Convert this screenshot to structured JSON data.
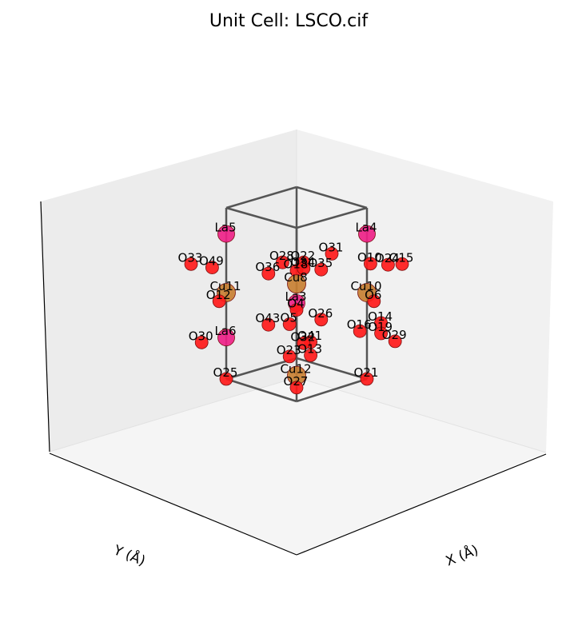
{
  "chart_data": {
    "type": "scatter3d",
    "title": "Unit Cell: LSCO.cif",
    "xlabel": "X (Å)",
    "ylabel": "Y (Å)",
    "colors": {
      "La": "#ee2288",
      "Sr": "#ee2288",
      "Cu": "#c88033",
      "O": "#ff1a1a",
      "cell": "#555555"
    },
    "atoms": [
      {
        "label": "La5",
        "el": "La",
        "x": 0.0,
        "y": 1.0,
        "z": 0.84
      },
      {
        "label": "La4",
        "el": "La",
        "x": 1.0,
        "y": 0.0,
        "z": 0.84
      },
      {
        "label": "O31",
        "el": "O",
        "x": 0.5,
        "y": 0.0,
        "z": 0.79
      },
      {
        "label": "O15",
        "el": "O",
        "x": 1.0,
        "y": -0.5,
        "z": 0.73
      },
      {
        "label": "O33",
        "el": "O",
        "x": -0.5,
        "y": 1.0,
        "z": 0.73
      },
      {
        "label": "O49",
        "el": "O",
        "x": -0.35,
        "y": 0.85,
        "z": 0.71
      },
      {
        "label": "O28",
        "el": "O",
        "x": 0.15,
        "y": 0.35,
        "z": 0.74
      },
      {
        "label": "O22",
        "el": "O",
        "x": 0.3,
        "y": 0.2,
        "z": 0.74
      },
      {
        "label": "O18",
        "el": "O",
        "x": 0.1,
        "y": 0.1,
        "z": 0.73
      },
      {
        "label": "O10",
        "el": "O",
        "x": 0.9,
        "y": -0.15,
        "z": 0.7
      },
      {
        "label": "O24",
        "el": "O",
        "x": 1.0,
        "y": -0.3,
        "z": 0.7
      },
      {
        "label": "O34",
        "el": "O",
        "x": 0.55,
        "y": 0.45,
        "z": 0.64
      },
      {
        "label": "O35",
        "el": "O",
        "x": 0.65,
        "y": 0.3,
        "z": 0.64
      },
      {
        "label": "O36",
        "el": "O",
        "x": 0.3,
        "y": 0.7,
        "z": 0.61
      },
      {
        "label": "Cu11",
        "el": "Cu",
        "x": 0.0,
        "y": 1.0,
        "z": 0.5
      },
      {
        "label": "Cu10",
        "el": "Cu",
        "x": 1.0,
        "y": 0.0,
        "z": 0.5
      },
      {
        "label": "Cu8",
        "el": "Cu",
        "x": 0.5,
        "y": 0.5,
        "z": 0.55
      },
      {
        "label": "O12",
        "el": "O",
        "x": -0.05,
        "y": 1.05,
        "z": 0.45
      },
      {
        "label": "O6",
        "el": "O",
        "x": 1.05,
        "y": -0.05,
        "z": 0.45
      },
      {
        "label": "La3",
        "el": "La",
        "x": 0.5,
        "y": 0.5,
        "z": 0.44
      },
      {
        "label": "O4",
        "el": "O",
        "x": 0.5,
        "y": 0.5,
        "z": 0.4
      },
      {
        "label": "O26",
        "el": "O",
        "x": 0.65,
        "y": 0.3,
        "z": 0.35
      },
      {
        "label": "O14",
        "el": "O",
        "x": 1.0,
        "y": -0.2,
        "z": 0.35
      },
      {
        "label": "O43",
        "el": "O",
        "x": 0.2,
        "y": 0.6,
        "z": 0.34
      },
      {
        "label": "O5",
        "el": "O",
        "x": 0.4,
        "y": 0.5,
        "z": 0.33
      },
      {
        "label": "O30",
        "el": "O",
        "x": -0.4,
        "y": 0.95,
        "z": 0.27
      },
      {
        "label": "La6",
        "el": "La",
        "x": 0.0,
        "y": 1.0,
        "z": 0.24
      },
      {
        "label": "O16",
        "el": "O",
        "x": 0.9,
        "y": 0.0,
        "z": 0.29
      },
      {
        "label": "O19",
        "el": "O",
        "x": 1.0,
        "y": -0.2,
        "z": 0.29
      },
      {
        "label": "O29",
        "el": "O",
        "x": 1.0,
        "y": -0.4,
        "z": 0.27
      },
      {
        "label": "O32",
        "el": "O",
        "x": 0.5,
        "y": 0.4,
        "z": 0.22
      },
      {
        "label": "O41",
        "el": "O",
        "x": 0.5,
        "y": 0.3,
        "z": 0.24
      },
      {
        "label": "O13",
        "el": "O",
        "x": 0.55,
        "y": 0.35,
        "z": 0.15
      },
      {
        "label": "O23",
        "el": "O",
        "x": 0.45,
        "y": 0.55,
        "z": 0.13
      },
      {
        "label": "O25",
        "el": "O",
        "x": 0.0,
        "y": 1.0,
        "z": 0.0
      },
      {
        "label": "Cu12",
        "el": "Cu",
        "x": 0.5,
        "y": 0.5,
        "z": 0.02
      },
      {
        "label": "O21",
        "el": "O",
        "x": 1.0,
        "y": 0.0,
        "z": 0.0
      },
      {
        "label": "O27",
        "el": "O",
        "x": 0.5,
        "y": 0.5,
        "z": -0.05
      }
    ]
  }
}
